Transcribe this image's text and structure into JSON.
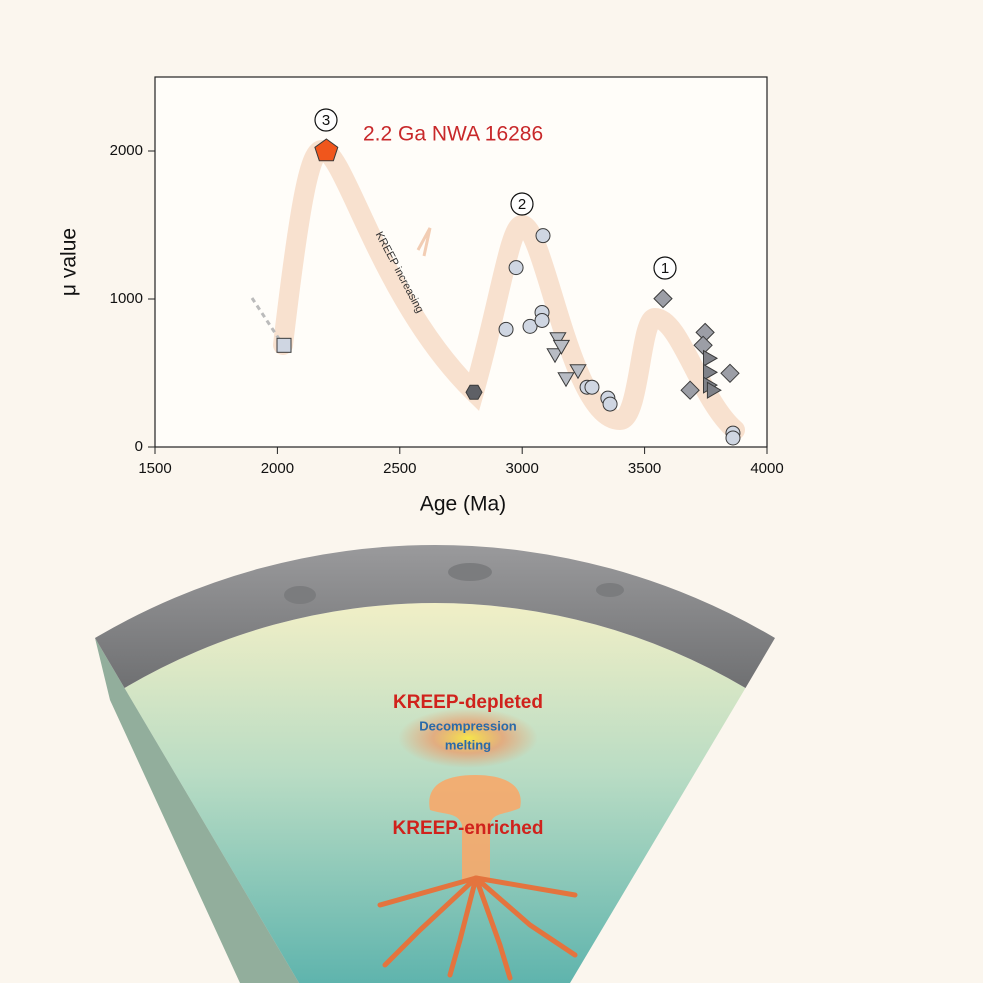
{
  "chart_data": {
    "type": "scatter",
    "x_label": "Age (Ma)",
    "y_label": "μ value",
    "xlim": [
      1500,
      4000
    ],
    "ylim": [
      0,
      2500
    ],
    "xticks": [
      1500,
      2000,
      2500,
      3000,
      3500,
      4000
    ],
    "yticks": [
      0,
      1000,
      2000
    ],
    "annotations": [
      "3",
      "2.2 Ga NWA 16286",
      "2",
      "1",
      "KREEP increasing"
    ],
    "series": [
      {
        "marker": "square",
        "color": "#cfd6e2",
        "x": [
          2027
        ],
        "y": [
          687
        ]
      },
      {
        "marker": "pentagon",
        "color": "#f0561c",
        "x": [
          2200
        ],
        "y": [
          2000
        ]
      },
      {
        "marker": "hexagon",
        "color": "#5e6066",
        "x": [
          2803
        ],
        "y": [
          370
        ]
      },
      {
        "marker": "circle",
        "color": "#cfd6e2",
        "x": [
          2975,
          3085,
          2934,
          3032,
          3081,
          3081,
          3265,
          3285,
          3350,
          3359,
          3861,
          3861
        ],
        "y": [
          1212,
          1428,
          795,
          815,
          909,
          855,
          404,
          404,
          330,
          290,
          94,
          61
        ]
      },
      {
        "marker": "triangle-down",
        "color": "#b8bcc4",
        "x": [
          3146,
          3134,
          3179,
          3228,
          3160
        ],
        "y": [
          741,
          633,
          471,
          525,
          690
        ]
      },
      {
        "marker": "diamond",
        "color": "#9c9ea6",
        "x": [
          3575,
          3747,
          3739,
          3686,
          3849
        ],
        "y": [
          1003,
          774,
          687,
          384,
          498
        ]
      },
      {
        "marker": "triangle-right",
        "color": "#7f8188",
        "x": [
          3759,
          3759,
          3759,
          3775
        ],
        "y": [
          599,
          505,
          418,
          384
        ]
      }
    ]
  },
  "illustration": {
    "labels": [
      "KREEP-depleted",
      "Decompression",
      "melting",
      "KREEP-enriched"
    ]
  }
}
